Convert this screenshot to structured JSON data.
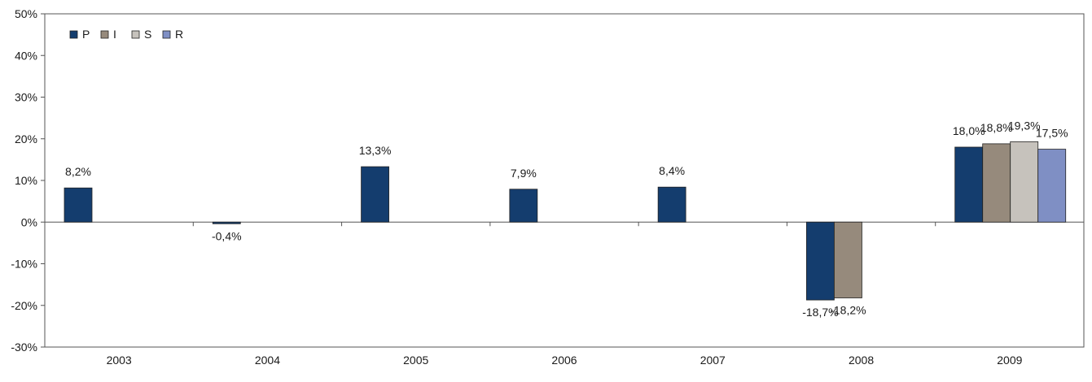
{
  "chart_data": {
    "type": "bar",
    "title": "",
    "xlabel": "",
    "ylabel": "",
    "categories": [
      "2003",
      "2004",
      "2005",
      "2006",
      "2007",
      "2008",
      "2009"
    ],
    "ylim": [
      -30,
      50
    ],
    "yticks": [
      -30,
      -20,
      -10,
      0,
      10,
      20,
      30,
      40,
      50
    ],
    "ytick_labels": [
      "-30%",
      "-20%",
      "-10%",
      "0%",
      "10%",
      "20%",
      "30%",
      "40%",
      "50%"
    ],
    "grid": false,
    "legend_position": "top-left",
    "series": [
      {
        "name": "P",
        "color": "#143d6e",
        "values": [
          8.2,
          -0.4,
          13.3,
          7.9,
          8.4,
          -18.7,
          18.0
        ],
        "labels": [
          "8,2%",
          "-0,4%",
          "13,3%",
          "7,9%",
          "8,4%",
          "-18,7%",
          "18,0%"
        ]
      },
      {
        "name": "I",
        "color": "#968a7c",
        "values": [
          null,
          null,
          null,
          null,
          null,
          -18.2,
          18.8
        ],
        "labels": [
          "",
          "",
          "",
          "",
          "",
          "-18,2%",
          "18,8%"
        ]
      },
      {
        "name": "S",
        "color": "#c6c2bc",
        "values": [
          null,
          null,
          null,
          null,
          null,
          null,
          19.3
        ],
        "labels": [
          "",
          "",
          "",
          "",
          "",
          "",
          "19,3%"
        ]
      },
      {
        "name": "R",
        "color": "#7f8fc4",
        "values": [
          null,
          null,
          null,
          null,
          null,
          null,
          17.5
        ],
        "labels": [
          "",
          "",
          "",
          "",
          "",
          "",
          "17,5%"
        ]
      }
    ]
  }
}
